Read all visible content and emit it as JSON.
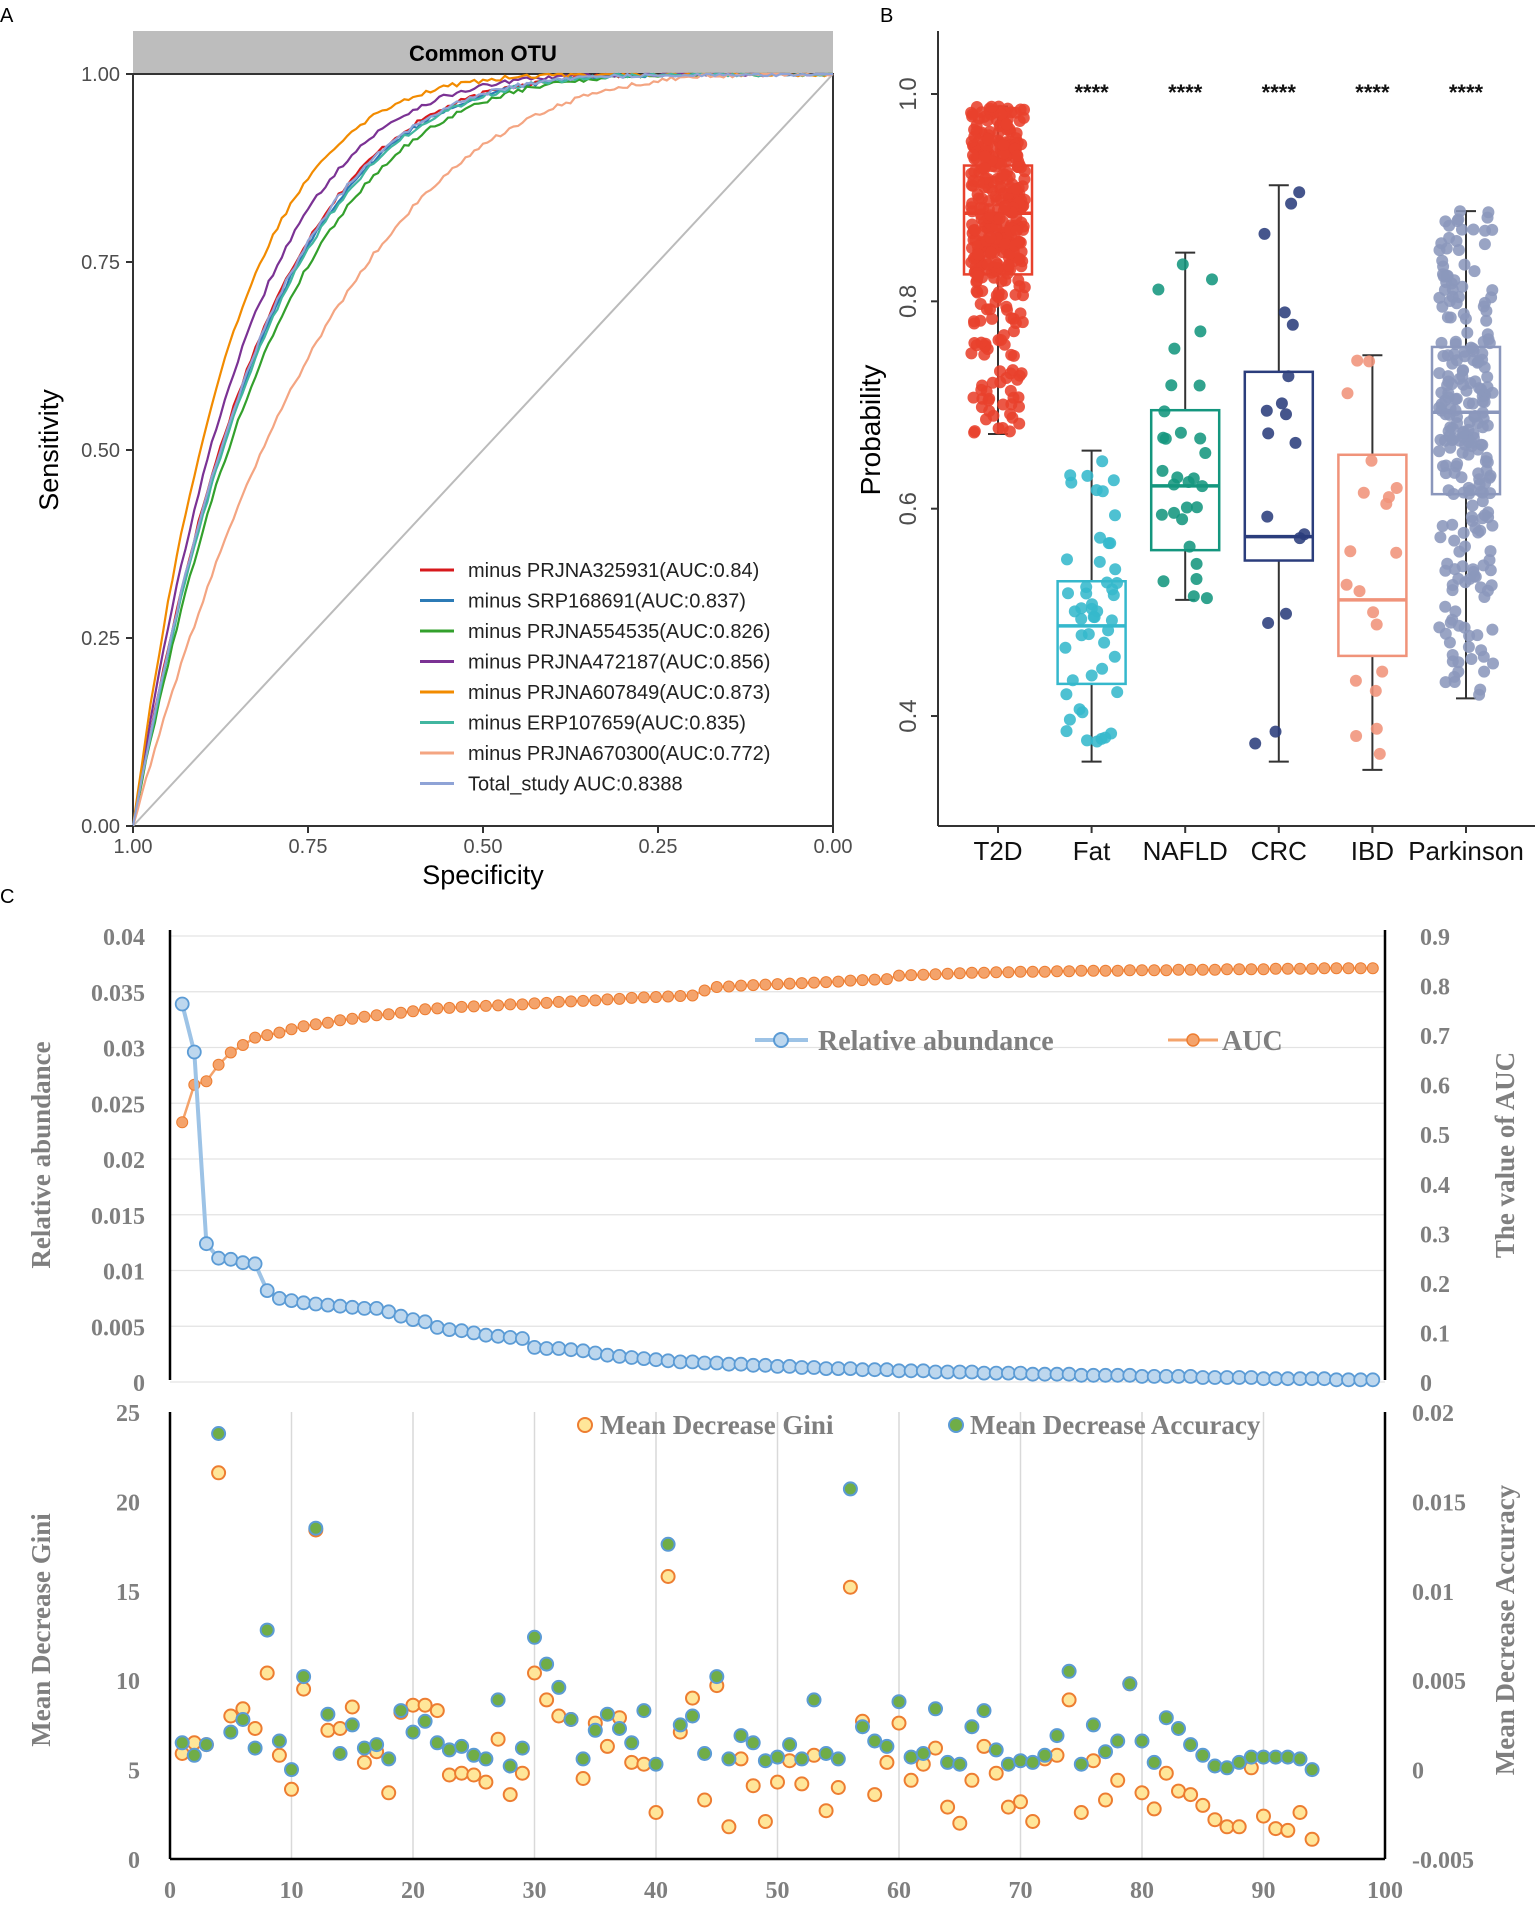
{
  "colors": {
    "t2d": "#e8412c",
    "fat": "#35b8cc",
    "nafld": "#14967e",
    "crc": "#2b3d7c",
    "ibd": "#f0937a",
    "parkinson": "#8b97bc",
    "rel_line": "#9dc3e6",
    "rel_fill": "#bdd7ee",
    "rel_stroke": "#5b9bd5",
    "auc_orange": "#f4a36b",
    "gini_fill": "#ffe699",
    "gini_stroke": "#ed7d31",
    "acc_fill": "#70ad47",
    "acc_stroke": "#5b9bd5"
  },
  "chart_data": [
    {
      "panel": "A",
      "type": "line",
      "strip_title": "Common OTU",
      "xlabel": "Specificity",
      "ylabel": "Sensitivity",
      "xlim": [
        1.0,
        0.0
      ],
      "ylim": [
        0.0,
        1.0
      ],
      "x_ticks": [
        "1.00",
        "0.75",
        "0.50",
        "0.25",
        "0.00"
      ],
      "y_ticks": [
        "0.00",
        "0.25",
        "0.50",
        "0.75",
        "1.00"
      ],
      "legend_position": "bottom-right",
      "series": [
        {
          "name": "minus PRJNA325931(AUC:0.84)",
          "color": "#d7191c",
          "auc": 0.84
        },
        {
          "name": "minus SRP168691(AUC:0.837)",
          "color": "#2c7bb6",
          "auc": 0.837
        },
        {
          "name": "minus PRJNA554535(AUC:0.826)",
          "color": "#33a02c",
          "auc": 0.826
        },
        {
          "name": "minus PRJNA472187(AUC:0.856)",
          "color": "#7b3294",
          "auc": 0.856
        },
        {
          "name": "minus PRJNA607849(AUC:0.873)",
          "color": "#f28b00",
          "auc": 0.873
        },
        {
          "name": "minus ERP107659(AUC:0.835)",
          "color": "#41b6a0",
          "auc": 0.835
        },
        {
          "name": "minus PRJNA670300(AUC:0.772)",
          "color": "#f4a582",
          "auc": 0.772
        },
        {
          "name": "Total_study AUC:0.8388",
          "color": "#8fa3d6",
          "auc": 0.8388
        }
      ]
    },
    {
      "panel": "B",
      "type": "box",
      "ylabel": "Probability",
      "ylim": [
        0.32,
        1.02
      ],
      "y_ticks": [
        "0.4",
        "0.6",
        "0.8",
        "1.0"
      ],
      "categories": [
        "T2D",
        "Fat",
        "NAFLD",
        "CRC",
        "IBD",
        "Parkinson"
      ],
      "boxes": [
        {
          "name": "T2D",
          "whisker_low": 0.672,
          "q1": 0.826,
          "median": 0.885,
          "q3": 0.931,
          "whisker_high": 0.988,
          "n": 380,
          "significance": ""
        },
        {
          "name": "Fat",
          "whisker_low": 0.356,
          "q1": 0.431,
          "median": 0.487,
          "q3": 0.53,
          "whisker_high": 0.656,
          "n": 50,
          "significance": "****"
        },
        {
          "name": "NAFLD",
          "whisker_low": 0.512,
          "q1": 0.56,
          "median": 0.622,
          "q3": 0.695,
          "whisker_high": 0.847,
          "n": 30,
          "significance": "****"
        },
        {
          "name": "CRC",
          "whisker_low": 0.356,
          "q1": 0.55,
          "median": 0.573,
          "q3": 0.732,
          "whisker_high": 0.912,
          "n": 18,
          "significance": "****"
        },
        {
          "name": "IBD",
          "whisker_low": 0.348,
          "q1": 0.458,
          "median": 0.512,
          "q3": 0.652,
          "whisker_high": 0.748,
          "n": 20,
          "significance": "****"
        },
        {
          "name": "Parkinson",
          "whisker_low": 0.417,
          "q1": 0.614,
          "median": 0.693,
          "q3": 0.756,
          "whisker_high": 0.887,
          "n": 240,
          "significance": "****"
        }
      ]
    },
    {
      "panel": "C-top",
      "type": "line",
      "ylabel_left": "Relative abundance",
      "ylabel_right": "The value of AUC",
      "ylim_left": [
        0,
        0.04
      ],
      "ylim_right": [
        0,
        0.9
      ],
      "y_ticks_left": [
        "0",
        "0.005",
        "0.01",
        "0.015",
        "0.02",
        "0.025",
        "0.03",
        "0.035",
        "0.04"
      ],
      "y_ticks_right": [
        "0",
        "0.1",
        "0.2",
        "0.3",
        "0.4",
        "0.5",
        "0.6",
        "0.7",
        "0.8",
        "0.9"
      ],
      "legend": [
        "Relative abundance",
        "AUC"
      ],
      "series": [
        {
          "name": "Relative abundance",
          "x": [
            1,
            2,
            3,
            4,
            5,
            6,
            7,
            8,
            9,
            10,
            11,
            12,
            13,
            14,
            15,
            16,
            17,
            18,
            19,
            20,
            21,
            22,
            23,
            24,
            25,
            26,
            27,
            28,
            29,
            30,
            31,
            32,
            33,
            34,
            35,
            36,
            37,
            38,
            39,
            40,
            41,
            42,
            43,
            44,
            45,
            46,
            47,
            48,
            49,
            50,
            51,
            52,
            53,
            54,
            55,
            56,
            57,
            58,
            59,
            60,
            61,
            62,
            63,
            64,
            65,
            66,
            67,
            68,
            69,
            70,
            71,
            72,
            73,
            74,
            75,
            76,
            77,
            78,
            79,
            80,
            81,
            82,
            83,
            84,
            85,
            86,
            87,
            88,
            89,
            90,
            91,
            92,
            93,
            94,
            95,
            96,
            97,
            98,
            99
          ],
          "values": [
            0.0339,
            0.0296,
            0.0124,
            0.0111,
            0.011,
            0.0107,
            0.0106,
            0.0082,
            0.0075,
            0.0073,
            0.0071,
            0.007,
            0.0069,
            0.0068,
            0.0067,
            0.0066,
            0.0066,
            0.0063,
            0.0059,
            0.0056,
            0.0054,
            0.0049,
            0.0047,
            0.0046,
            0.0044,
            0.0042,
            0.0041,
            0.004,
            0.0039,
            0.0031,
            0.003,
            0.003,
            0.0029,
            0.0028,
            0.0026,
            0.0024,
            0.0023,
            0.0022,
            0.0021,
            0.002,
            0.0019,
            0.0018,
            0.0018,
            0.0017,
            0.0017,
            0.0016,
            0.0016,
            0.0015,
            0.0015,
            0.0014,
            0.0014,
            0.0013,
            0.0013,
            0.0012,
            0.0012,
            0.0012,
            0.0011,
            0.0011,
            0.0011,
            0.001,
            0.001,
            0.001,
            0.0009,
            0.0009,
            0.0009,
            0.0009,
            0.0008,
            0.0008,
            0.0008,
            0.0008,
            0.0007,
            0.0007,
            0.0007,
            0.0007,
            0.0006,
            0.0006,
            0.0006,
            0.0006,
            0.0006,
            0.0005,
            0.0005,
            0.0005,
            0.0005,
            0.0005,
            0.0004,
            0.0004,
            0.0004,
            0.0004,
            0.0004,
            0.0003,
            0.0003,
            0.0003,
            0.0003,
            0.0003,
            0.0003,
            0.0002,
            0.0002,
            0.0002,
            0.0002
          ]
        },
        {
          "name": "AUC",
          "x": [
            1,
            2,
            3,
            4,
            5,
            6,
            7,
            8,
            9,
            10,
            11,
            12,
            13,
            14,
            15,
            16,
            17,
            18,
            19,
            20,
            21,
            22,
            23,
            24,
            25,
            26,
            27,
            28,
            29,
            30,
            31,
            32,
            33,
            34,
            35,
            36,
            37,
            38,
            39,
            40,
            41,
            42,
            43,
            44,
            45,
            46,
            47,
            48,
            49,
            50,
            51,
            52,
            53,
            54,
            55,
            56,
            57,
            58,
            59,
            60,
            61,
            62,
            63,
            64,
            65,
            66,
            67,
            68,
            69,
            70,
            71,
            72,
            73,
            74,
            75,
            76,
            77,
            78,
            79,
            80,
            81,
            82,
            83,
            84,
            85,
            86,
            87,
            88,
            89,
            90,
            91,
            92,
            93,
            94,
            95,
            96,
            97,
            98,
            99
          ],
          "values": [
            0.524,
            0.6,
            0.607,
            0.64,
            0.665,
            0.68,
            0.695,
            0.7,
            0.705,
            0.712,
            0.718,
            0.722,
            0.725,
            0.73,
            0.733,
            0.737,
            0.74,
            0.742,
            0.745,
            0.748,
            0.752,
            0.754,
            0.755,
            0.757,
            0.758,
            0.759,
            0.76,
            0.762,
            0.762,
            0.764,
            0.765,
            0.767,
            0.768,
            0.769,
            0.77,
            0.772,
            0.773,
            0.775,
            0.776,
            0.777,
            0.778,
            0.779,
            0.78,
            0.79,
            0.797,
            0.798,
            0.8,
            0.801,
            0.802,
            0.803,
            0.804,
            0.805,
            0.806,
            0.807,
            0.808,
            0.81,
            0.811,
            0.812,
            0.813,
            0.82,
            0.821,
            0.822,
            0.823,
            0.824,
            0.825,
            0.826,
            0.826,
            0.827,
            0.827,
            0.828,
            0.828,
            0.828,
            0.829,
            0.829,
            0.83,
            0.83,
            0.83,
            0.83,
            0.831,
            0.831,
            0.831,
            0.831,
            0.832,
            0.832,
            0.832,
            0.832,
            0.833,
            0.833,
            0.833,
            0.833,
            0.834,
            0.834,
            0.834,
            0.834,
            0.835,
            0.835,
            0.835,
            0.835,
            0.835
          ]
        }
      ]
    },
    {
      "panel": "C-bottom",
      "type": "scatter",
      "ylabel_left": "Mean Decrease Gini",
      "ylabel_right": "Mean Decrease Accuracy",
      "xlim": [
        0,
        100
      ],
      "ylim_left": [
        0,
        25
      ],
      "ylim_right": [
        -0.005,
        0.02
      ],
      "x_ticks": [
        "0",
        "10",
        "20",
        "30",
        "40",
        "50",
        "60",
        "70",
        "80",
        "90",
        "100"
      ],
      "y_ticks_left": [
        "0",
        "5",
        "10",
        "15",
        "20",
        "25"
      ],
      "y_ticks_right": [
        "-0.005",
        "0",
        "0.005",
        "0.01",
        "0.015",
        "0.02"
      ],
      "legend": [
        "Mean Decrease Gini",
        "Mean Decrease Accuracy"
      ],
      "series": [
        {
          "name": "Mean Decrease Gini",
          "x": [
            1,
            2,
            3,
            4,
            5,
            6,
            7,
            8,
            9,
            10,
            11,
            12,
            13,
            14,
            15,
            16,
            17,
            18,
            19,
            20,
            21,
            22,
            23,
            24,
            25,
            26,
            27,
            28,
            29,
            30,
            31,
            32,
            33,
            34,
            35,
            36,
            37,
            38,
            39,
            40,
            41,
            42,
            43,
            44,
            45,
            46,
            47,
            48,
            49,
            50,
            51,
            52,
            53,
            54,
            55,
            56,
            57,
            58,
            59,
            60,
            61,
            62,
            63,
            64,
            65,
            66,
            67,
            68,
            69,
            70,
            71,
            72,
            73,
            74,
            75,
            76,
            77,
            78,
            79,
            80,
            81,
            82,
            83,
            84,
            85,
            86,
            87,
            88,
            89,
            90,
            91,
            92,
            93,
            94
          ],
          "values": [
            5.9,
            6.5,
            6.4,
            21.6,
            8.0,
            8.4,
            7.3,
            10.4,
            5.8,
            3.9,
            9.5,
            18.4,
            7.2,
            7.3,
            8.5,
            5.4,
            6.0,
            3.7,
            8.2,
            8.6,
            8.6,
            8.3,
            4.7,
            4.8,
            4.7,
            4.3,
            6.7,
            3.6,
            4.8,
            10.4,
            8.9,
            8.0,
            7.8,
            4.5,
            7.6,
            6.3,
            7.9,
            5.4,
            5.3,
            2.6,
            15.8,
            7.1,
            9.0,
            3.3,
            9.7,
            1.8,
            5.6,
            4.1,
            2.1,
            4.3,
            5.5,
            4.2,
            5.8,
            2.7,
            4.0,
            15.2,
            7.7,
            3.6,
            5.4,
            7.6,
            4.4,
            5.3,
            6.2,
            2.9,
            2.0,
            4.4,
            6.3,
            4.8,
            2.9,
            3.2,
            2.1,
            5.6,
            5.8,
            8.9,
            2.6,
            5.5,
            3.3,
            4.4,
            9.8,
            3.7,
            2.8,
            4.8,
            3.8,
            3.6,
            3.0,
            2.2,
            1.8,
            1.8,
            5.1,
            2.4,
            1.7,
            1.6,
            2.6,
            1.1
          ]
        },
        {
          "name": "Mean Decrease Accuracy",
          "x": [
            1,
            2,
            3,
            4,
            5,
            6,
            7,
            8,
            9,
            10,
            11,
            12,
            13,
            14,
            15,
            16,
            17,
            18,
            19,
            20,
            21,
            22,
            23,
            24,
            25,
            26,
            27,
            28,
            29,
            30,
            31,
            32,
            33,
            34,
            35,
            36,
            37,
            38,
            39,
            40,
            41,
            42,
            43,
            44,
            45,
            46,
            47,
            48,
            49,
            50,
            51,
            52,
            53,
            54,
            55,
            56,
            57,
            58,
            59,
            60,
            61,
            62,
            63,
            64,
            65,
            66,
            67,
            68,
            69,
            70,
            71,
            72,
            73,
            74,
            75,
            76,
            77,
            78,
            79,
            80,
            81,
            82,
            83,
            84,
            85,
            86,
            87,
            88,
            89,
            90,
            91,
            92,
            93,
            94
          ],
          "values": [
            0.0015,
            0.0008,
            0.0014,
            0.0188,
            0.0021,
            0.0028,
            0.0012,
            0.0078,
            0.0016,
            0.0,
            0.0052,
            0.0135,
            0.0031,
            0.0009,
            0.0025,
            0.0012,
            0.0014,
            0.0006,
            0.0033,
            0.0021,
            0.0027,
            0.0015,
            0.0011,
            0.0013,
            0.0008,
            0.0006,
            0.0039,
            0.0002,
            0.0012,
            0.0074,
            0.0059,
            0.0046,
            0.0028,
            0.0006,
            0.0022,
            0.0031,
            0.0023,
            0.0015,
            0.0033,
            0.0003,
            0.0126,
            0.0025,
            0.003,
            0.0009,
            0.0052,
            0.0006,
            0.0019,
            0.0015,
            0.0005,
            0.0007,
            0.0014,
            0.0006,
            0.0039,
            0.0009,
            0.0006,
            0.0157,
            0.0024,
            0.0016,
            0.0013,
            0.0038,
            0.0007,
            0.0009,
            0.0034,
            0.0004,
            0.0003,
            0.0024,
            0.0033,
            0.0011,
            0.0003,
            0.0005,
            0.0004,
            0.0008,
            0.0019,
            0.0055,
            0.0003,
            0.0025,
            0.001,
            0.0016,
            0.0048,
            0.0016,
            0.0004,
            0.0029,
            0.0023,
            0.0014,
            0.0008,
            0.0002,
            0.0001,
            0.0004,
            0.0007,
            0.0007,
            0.0007,
            0.0007,
            0.0006,
            0.0
          ]
        }
      ]
    }
  ],
  "labels": {
    "panel_a": "A",
    "panel_b": "B",
    "panel_c": "C"
  }
}
